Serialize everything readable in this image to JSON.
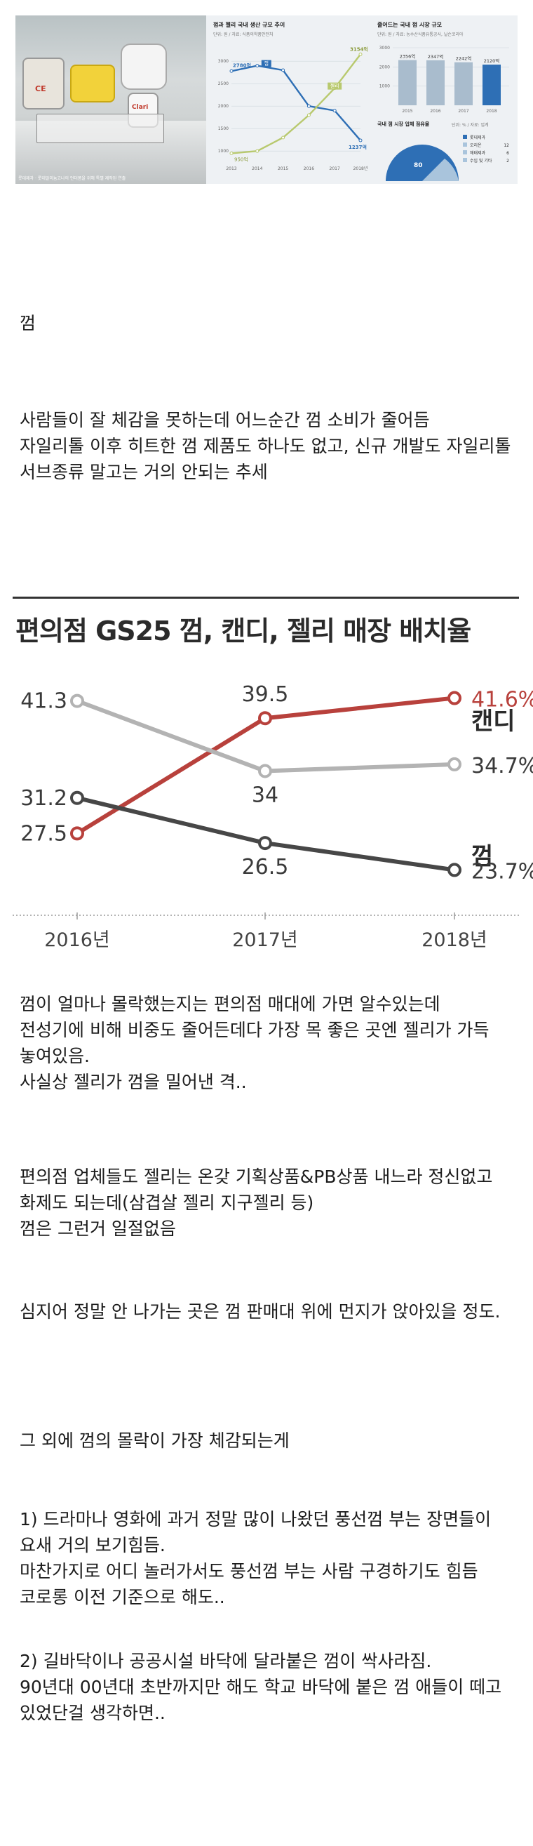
{
  "top_image": {
    "photo_caption": "롯데제과 · 롯데알미늄고나의 언더폼을 위해 특별 제작된 연출",
    "jar_label": "CE",
    "jar_label_2": "Clari",
    "left_chart": {
      "title": "껌과 젤리 국내 생산 규모 추이",
      "note": "단위: 원 / 자료: 식품의약품안전처",
      "y_ticks": [
        "3000",
        "2500",
        "2000",
        "1500",
        "1000"
      ],
      "x_ticks": [
        "2013",
        "2014",
        "2015",
        "2016",
        "2017",
        "2018년"
      ],
      "labels": {
        "gum_start": "2780억",
        "gum_end": "1237억",
        "jelly_start": "950억",
        "jelly_end": "3154억",
        "legend_gum": "껌",
        "legend_jelly": "젤리"
      },
      "chart_data": {
        "type": "line",
        "x": [
          "2013",
          "2014",
          "2015",
          "2016",
          "2017",
          "2018"
        ],
        "ylim": [
          800,
          3300
        ],
        "series": [
          {
            "name": "껌",
            "values": [
              2780,
              2900,
              2800,
              2000,
              1900,
              1237
            ]
          },
          {
            "name": "젤리",
            "values": [
              950,
              1000,
              1300,
              1800,
              2400,
              3154
            ]
          }
        ]
      }
    },
    "right_chart": {
      "title": "줄어드는 국내 껌 시장 규모",
      "note": "단위: 원 / 자료: 농수산식품유통공사, 닐슨코리아",
      "y_ticks": [
        "3000",
        "2000",
        "1000"
      ],
      "x_ticks": [
        "2015",
        "2016",
        "2017",
        "2018"
      ],
      "chart_data": {
        "type": "bar",
        "categories": [
          "2015",
          "2016",
          "2017",
          "2018"
        ],
        "values": [
          2356,
          2347,
          2242,
          2120
        ],
        "value_labels": [
          "2356억",
          "2347억",
          "2242억",
          "2120억"
        ],
        "ylim": [
          0,
          3000
        ]
      },
      "share_title": "국내 껌 시장 업체 점유율",
      "share_note": "단위: % / 자료: 업계",
      "share_center": "80",
      "share_items": [
        {
          "name": "롯데제과",
          "value": ""
        },
        {
          "name": "오리온",
          "value": "12"
        },
        {
          "name": "해태제과",
          "value": "6"
        },
        {
          "name": "수입 및 기타",
          "value": "2"
        }
      ]
    }
  },
  "paragraphs": {
    "p1": "껌",
    "p2": "사람들이 잘 체감을 못하는데 어느순간 껌 소비가 줄어듬\n자일리톨 이후 히트한 껌 제품도 하나도 없고, 신규 개발도 자일리톨 서브종류 말고는 거의 안되는 추세",
    "p3": "껌이 얼마나 몰락했는지는 편의점 매대에 가면 알수있는데\n전성기에 비해 비중도 줄어든데다 가장 목 좋은 곳엔 젤리가 가득 놓여있음.\n사실상 젤리가 껌을 밀어낸 격..",
    "p4": "편의점 업체들도 젤리는 온갖 기획상품&PB상품 내느라 정신없고 화제도 되는데(삼겹살 젤리 지구젤리 등)\n껌은 그런거 일절없음",
    "p5": "심지어 정말 안 나가는 곳은 껌 판매대 위에 먼지가 앉아있을 정도.",
    "p6": "그 외에 껌의 몰락이 가장 체감되는게",
    "p7": "1) 드라마나 영화에 과거 정말 많이 나왔던 풍선껌 부는 장면들이 요새 거의 보기힘듬.\n마찬가지로 어디 놀러가서도 풍선껌 부는 사람 구경하기도 힘듬 코로롱 이전 기준으로 해도..",
    "p8": "2) 길바닥이나 공공시설 바닥에 달라붙은 껌이 싹사라짐.\n90년대 00년대 초반까지만 해도 학교 바닥에 붙은 껌 애들이 떼고 있었단걸 생각하면.."
  },
  "gs25_chart": {
    "title": "편의점 GS25 껌, 캔디, 젤리 매장 배치율",
    "chart_data": {
      "type": "line",
      "categories": [
        "2016년",
        "2017년",
        "2018년"
      ],
      "series": [
        {
          "name": "젤리",
          "values": [
            27.5,
            39.5,
            41.6
          ],
          "labels": [
            "27.5",
            "39.5",
            "41.6%"
          ],
          "color": "#b8413c"
        },
        {
          "name": "캔디",
          "values": [
            41.3,
            34,
            34.7
          ],
          "labels": [
            "41.3",
            "34",
            "34.7%"
          ],
          "color": "#b3b3b3"
        },
        {
          "name": "껌",
          "values": [
            31.2,
            26.5,
            23.7
          ],
          "labels": [
            "31.2",
            "26.5",
            "23.7%"
          ],
          "color": "#474747"
        }
      ],
      "ylim": [
        20,
        45
      ]
    }
  }
}
